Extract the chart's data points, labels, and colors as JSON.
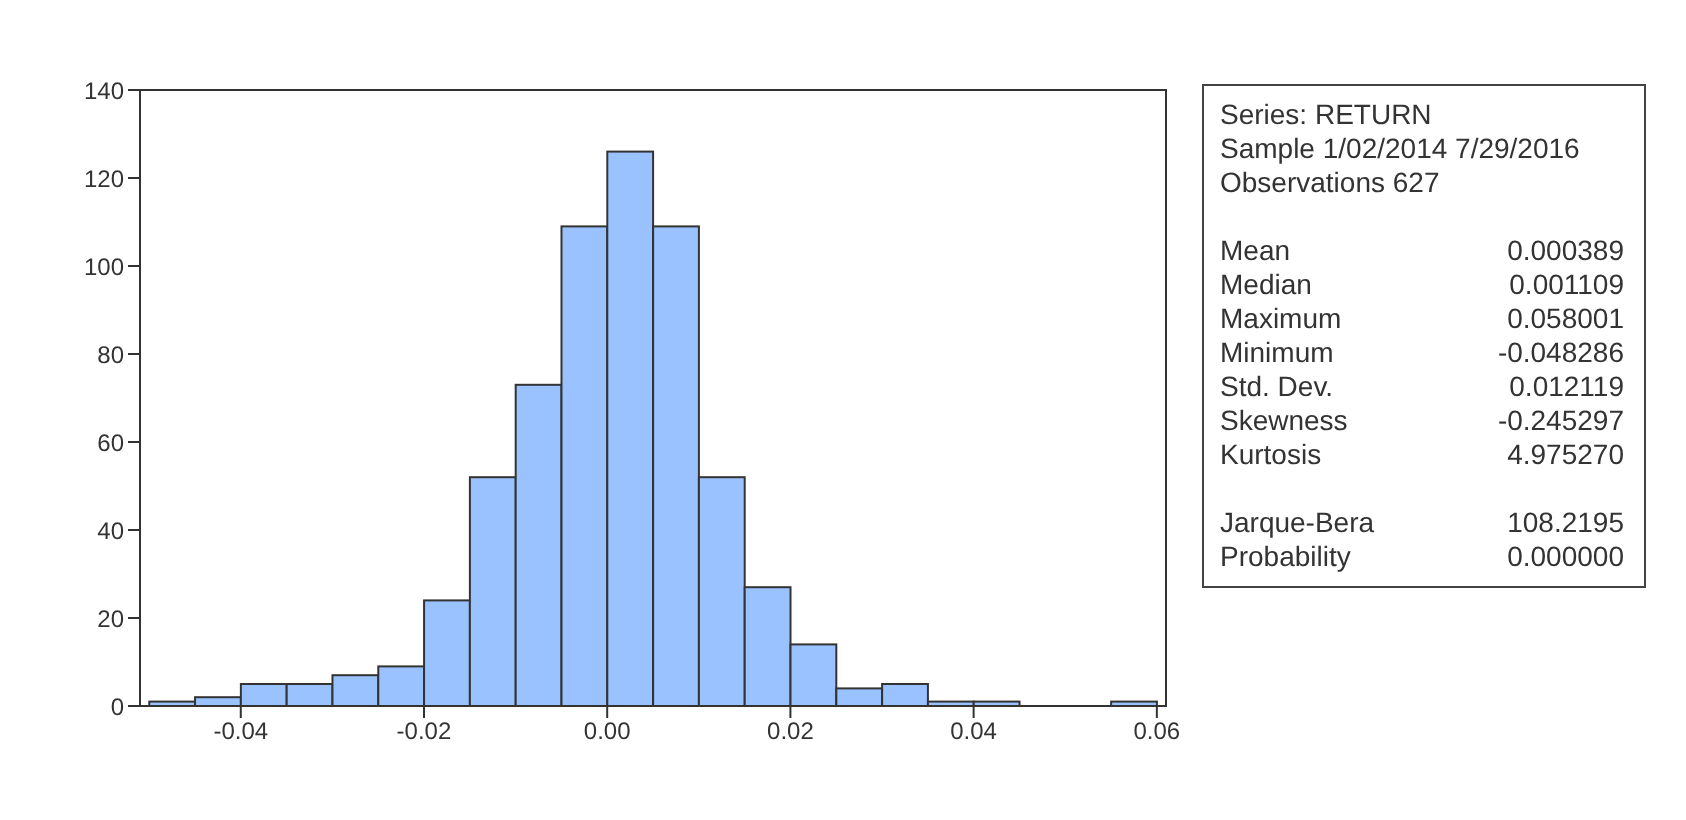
{
  "chart_data": [
    {
      "type": "histogram",
      "bins": [
        -0.05,
        -0.045,
        -0.04,
        -0.035,
        -0.03,
        -0.025,
        -0.02,
        -0.015,
        -0.01,
        -0.005,
        0,
        0.005,
        0.01,
        0.015,
        0.02,
        0.025,
        0.03,
        0.035,
        0.04,
        0.045,
        0.05,
        0.055,
        0.06
      ],
      "values": [
        1,
        2,
        5,
        5,
        7,
        9,
        24,
        52,
        73,
        109,
        126,
        109,
        52,
        27,
        14,
        4,
        5,
        1,
        1,
        0,
        0,
        1
      ],
      "color": "#99c2ff",
      "xlim": [
        -0.051,
        0.061
      ],
      "xticks": [
        -0.04,
        -0.02,
        {
          "value": 0,
          "label": "0.00"
        },
        0.02,
        0.04,
        0.06
      ],
      "ylim": [
        0,
        140
      ],
      "yticks": [
        0,
        20,
        40,
        60,
        80,
        100,
        120,
        140
      ],
      "grid": false,
      "legend": false
    },
    {
      "type": "other",
      "annotations": [
        "Series: RETURN",
        "Sample 1/02/2014 7/29/2016",
        "Observations 627",
        "Mean",
        "0.000389",
        "Median",
        "0.001109",
        "Maximum",
        "0.058001",
        "Minimum",
        "-0.048286",
        "Std. Dev.",
        "0.012119",
        "Skewness",
        "-0.245297",
        "Kurtosis",
        "4.975270",
        "Jarque-Bera",
        "108.2195",
        "Probability",
        "0.000000"
      ]
    }
  ]
}
